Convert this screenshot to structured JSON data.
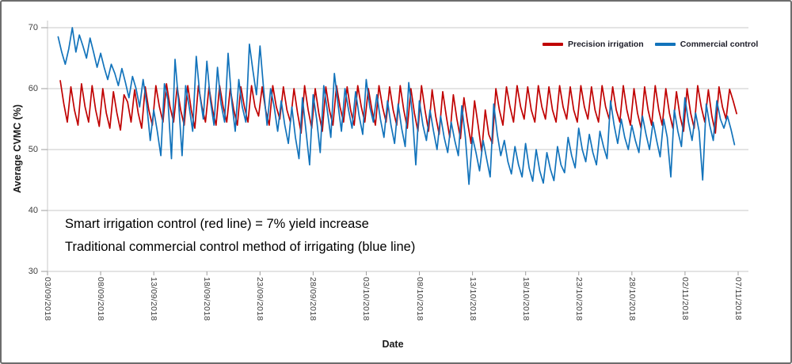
{
  "chart_data": {
    "type": "line",
    "xlabel": "Date",
    "ylabel": "Average CVMC (%)",
    "ylim": [
      30,
      70
    ],
    "yticks": [
      70,
      60,
      50,
      40,
      30
    ],
    "x_total_days": 65,
    "xtick_step_days": 5,
    "xtick_labels": [
      "03/09/2018",
      "08/09/2018",
      "13/09/2018",
      "18/09/2018",
      "23/09/2018",
      "28/09/2018",
      "03/10/2018",
      "08/10/2018",
      "13/10/2018",
      "18/10/2018",
      "23/10/2018",
      "28/10/2018",
      "02/11/2018",
      "07/11/2018"
    ],
    "grid": "horizontal",
    "legend_position": "top-right",
    "series": [
      {
        "name": "Precision irrigation",
        "color": "#c00000",
        "start_day": 1.2,
        "step_days": 0.3333,
        "values": [
          61.3,
          57.5,
          54.5,
          60.3,
          56.5,
          54.0,
          60.8,
          57.0,
          54.5,
          60.5,
          56.5,
          53.8,
          60.0,
          56.0,
          53.5,
          59.5,
          56.0,
          53.2,
          59.0,
          57.8,
          54.5,
          59.8,
          56.0,
          53.5,
          60.3,
          56.5,
          54.0,
          60.5,
          57.0,
          54.5,
          60.8,
          57.0,
          54.5,
          60.3,
          56.5,
          54.0,
          60.5,
          56.5,
          53.5,
          60.5,
          57.0,
          54.5,
          60.3,
          56.5,
          54.0,
          60.5,
          57.0,
          54.5,
          60.0,
          56.5,
          54.0,
          60.3,
          57.0,
          54.5,
          60.5,
          57.0,
          55.5,
          60.3,
          56.5,
          54.0,
          60.5,
          57.0,
          55.0,
          60.3,
          56.5,
          54.5,
          60.0,
          56.0,
          52.7,
          60.5,
          56.5,
          53.5,
          60.0,
          56.0,
          53.0,
          60.3,
          56.5,
          54.0,
          60.5,
          57.0,
          54.5,
          60.3,
          56.5,
          54.0,
          60.5,
          57.0,
          54.5,
          60.0,
          56.5,
          54.0,
          60.5,
          57.0,
          54.5,
          60.3,
          56.5,
          54.0,
          60.5,
          56.5,
          53.5,
          60.0,
          56.0,
          53.0,
          60.5,
          56.5,
          53.0,
          59.8,
          55.5,
          52.5,
          59.5,
          55.5,
          52.0,
          59.0,
          55.0,
          51.8,
          58.5,
          54.5,
          51.0,
          58.0,
          54.0,
          49.6,
          56.5,
          52.5,
          51.0,
          60.0,
          56.5,
          54.0,
          60.3,
          57.0,
          54.5,
          60.5,
          57.0,
          55.0,
          60.3,
          56.5,
          54.5,
          60.5,
          57.0,
          55.0,
          60.3,
          56.5,
          54.5,
          60.5,
          57.0,
          55.0,
          60.3,
          56.5,
          54.5,
          60.5,
          57.0,
          55.0,
          60.3,
          56.5,
          54.5,
          60.5,
          57.0,
          55.0,
          60.3,
          56.5,
          54.5,
          60.5,
          56.5,
          54.0,
          60.0,
          56.0,
          53.5,
          60.3,
          56.5,
          54.0,
          60.5,
          56.5,
          54.0,
          60.0,
          56.0,
          53.5,
          59.5,
          55.5,
          53.0,
          60.0,
          56.0,
          53.5,
          60.5,
          57.0,
          54.5,
          59.8,
          55.5,
          52.7,
          60.3,
          57.0,
          55.0,
          59.9,
          58.0,
          55.9
        ]
      },
      {
        "name": "Commercial control",
        "color": "#1273bb",
        "start_day": 1.0,
        "step_days": 0.3333,
        "values": [
          68.5,
          66.0,
          64.0,
          66.5,
          70.0,
          66.0,
          68.8,
          67.0,
          65.0,
          68.3,
          66.0,
          63.5,
          65.8,
          63.5,
          61.5,
          64.0,
          62.5,
          60.5,
          63.3,
          61.0,
          58.5,
          62.0,
          60.0,
          57.0,
          61.5,
          57.5,
          51.5,
          56.5,
          53.0,
          49.0,
          60.8,
          58.2,
          48.5,
          64.8,
          58.0,
          49.0,
          60.5,
          57.0,
          53.0,
          65.3,
          59.0,
          55.0,
          64.5,
          58.0,
          54.0,
          63.5,
          57.5,
          54.5,
          65.8,
          58.0,
          53.0,
          61.5,
          57.0,
          54.5,
          67.3,
          63.0,
          59.0,
          67.0,
          60.0,
          54.0,
          60.0,
          57.0,
          53.0,
          58.0,
          54.0,
          51.0,
          57.0,
          52.0,
          48.5,
          58.5,
          53.0,
          47.5,
          59.0,
          55.0,
          49.5,
          60.5,
          56.5,
          52.0,
          62.5,
          57.5,
          53.0,
          60.0,
          56.5,
          53.5,
          59.5,
          55.5,
          52.5,
          61.5,
          57.0,
          54.5,
          59.0,
          55.0,
          52.0,
          58.0,
          54.0,
          51.0,
          57.5,
          53.5,
          50.5,
          61.0,
          56.0,
          47.5,
          58.0,
          54.0,
          51.5,
          56.5,
          53.0,
          50.0,
          55.5,
          52.0,
          49.5,
          54.5,
          51.5,
          49.0,
          57.2,
          52.0,
          44.3,
          52.0,
          49.5,
          46.5,
          51.5,
          48.5,
          45.5,
          57.5,
          52.5,
          49.0,
          51.5,
          48.0,
          46.0,
          50.5,
          47.5,
          45.5,
          51.0,
          47.0,
          44.8,
          50.0,
          46.5,
          44.5,
          49.5,
          46.8,
          44.9,
          50.5,
          47.5,
          46.2,
          52.0,
          49.0,
          47.0,
          53.5,
          50.0,
          48.0,
          52.5,
          49.5,
          47.5,
          53.0,
          50.5,
          48.5,
          58.0,
          54.0,
          51.0,
          55.0,
          52.0,
          50.0,
          54.0,
          51.5,
          49.5,
          55.5,
          52.5,
          50.0,
          54.5,
          51.5,
          48.8,
          55.0,
          52.0,
          45.5,
          56.5,
          53.0,
          50.5,
          58.5,
          54.5,
          51.5,
          56.0,
          53.0,
          45.0,
          57.5,
          54.0,
          51.5,
          58.0,
          55.0,
          53.5,
          55.5,
          53.3,
          50.8
        ]
      }
    ]
  },
  "annotation": {
    "line1": "Smart irrigation control (red line) = 7% yield increase",
    "line2": "Traditional commercial control method of irrigating (blue line)"
  },
  "colors": {
    "grid": "#c9c9c9",
    "axis_tick": "#9e9e9e",
    "tick_text": "#3f3f3f"
  }
}
